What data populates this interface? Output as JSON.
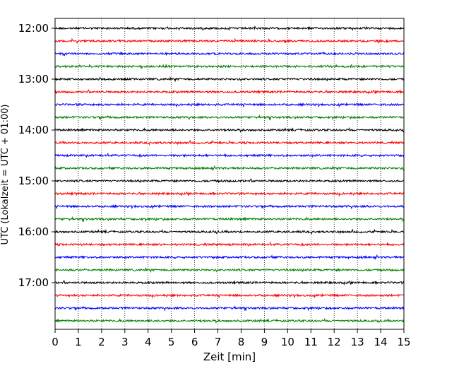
{
  "chart_data": {
    "type": "line",
    "chart_kind": "helicorder",
    "xlabel": "Zeit  [min]",
    "ylabel": "UTC (Lokalzeit = UTC + 01:00)",
    "xlim": [
      0,
      15
    ],
    "x_ticks": [
      "0",
      "1",
      "2",
      "3",
      "4",
      "5",
      "6",
      "7",
      "8",
      "9",
      "10",
      "11",
      "12",
      "13",
      "14",
      "15"
    ],
    "y_tick_labels": [
      "12:00",
      "13:00",
      "14:00",
      "15:00",
      "16:00",
      "17:00"
    ],
    "vertical_grid": "dotted",
    "trace_colors": [
      "#000000",
      "#ff0000",
      "#0000ff",
      "#008000"
    ],
    "rows": [
      {
        "start": "12:00",
        "color": "#000000"
      },
      {
        "start": "12:15",
        "color": "#ff0000"
      },
      {
        "start": "12:30",
        "color": "#0000ff"
      },
      {
        "start": "12:45",
        "color": "#008000"
      },
      {
        "start": "13:00",
        "color": "#000000"
      },
      {
        "start": "13:15",
        "color": "#ff0000"
      },
      {
        "start": "13:30",
        "color": "#0000ff"
      },
      {
        "start": "13:45",
        "color": "#008000"
      },
      {
        "start": "14:00",
        "color": "#000000"
      },
      {
        "start": "14:15",
        "color": "#ff0000"
      },
      {
        "start": "14:30",
        "color": "#0000ff"
      },
      {
        "start": "14:45",
        "color": "#008000"
      },
      {
        "start": "15:00",
        "color": "#000000"
      },
      {
        "start": "15:15",
        "color": "#ff0000"
      },
      {
        "start": "15:30",
        "color": "#0000ff"
      },
      {
        "start": "15:45",
        "color": "#008000"
      },
      {
        "start": "16:00",
        "color": "#000000"
      },
      {
        "start": "16:15",
        "color": "#ff0000"
      },
      {
        "start": "16:30",
        "color": "#0000ff"
      },
      {
        "start": "16:45",
        "color": "#008000"
      },
      {
        "start": "17:00",
        "color": "#000000"
      },
      {
        "start": "17:15",
        "color": "#ff0000"
      },
      {
        "start": "17:30",
        "color": "#0000ff"
      },
      {
        "start": "17:45",
        "color": "#008000"
      }
    ]
  }
}
